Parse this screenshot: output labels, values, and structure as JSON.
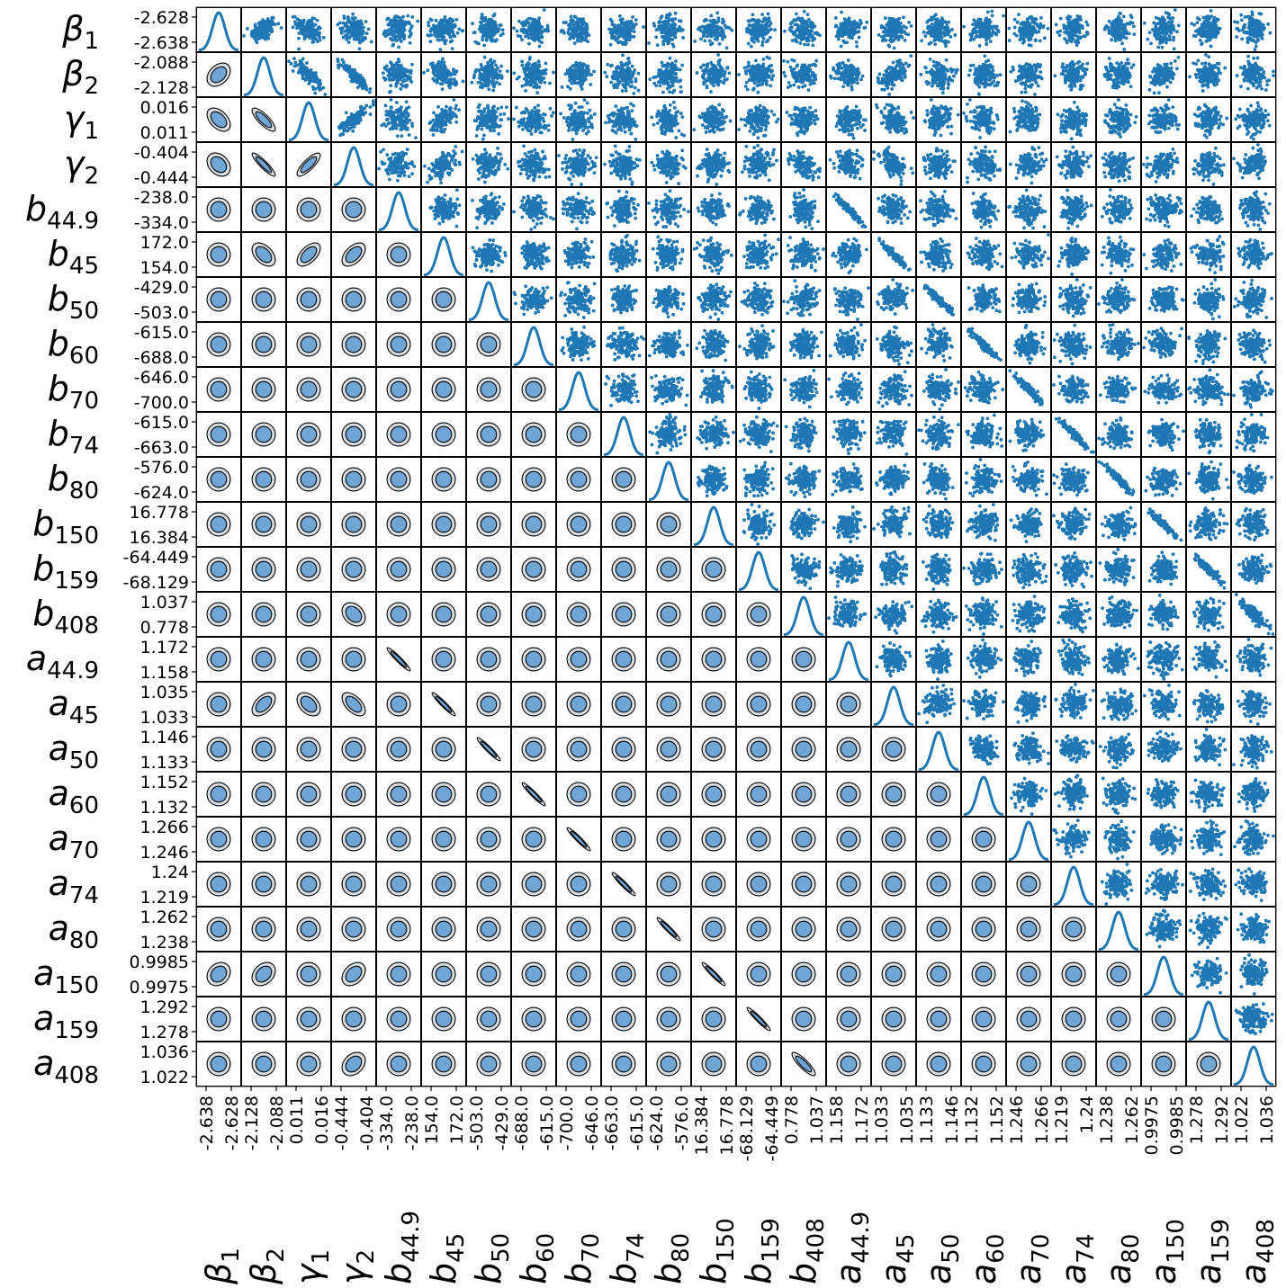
{
  "chart_data": {
    "type": "scatter",
    "layout": "corner-plot",
    "colors": {
      "marker": "#1f77b4",
      "contour_fill": "#6fa6d6",
      "contour_outer": "#d9dee3",
      "frame": "#000000"
    },
    "parameters": [
      {
        "symbol": "β",
        "sub": "1",
        "ticks": [
          "-2.638",
          "-2.628"
        ]
      },
      {
        "symbol": "β",
        "sub": "2",
        "ticks": [
          "-2.128",
          "-2.088"
        ]
      },
      {
        "symbol": "γ",
        "sub": "1",
        "ticks": [
          "0.011",
          "0.016"
        ]
      },
      {
        "symbol": "γ",
        "sub": "2",
        "ticks": [
          "-0.444",
          "-0.404"
        ]
      },
      {
        "symbol": "b",
        "sub": "44.9",
        "ticks": [
          "-334.0",
          "-238.0"
        ]
      },
      {
        "symbol": "b",
        "sub": "45",
        "ticks": [
          "154.0",
          "172.0"
        ]
      },
      {
        "symbol": "b",
        "sub": "50",
        "ticks": [
          "-503.0",
          "-429.0"
        ]
      },
      {
        "symbol": "b",
        "sub": "60",
        "ticks": [
          "-688.0",
          "-615.0"
        ]
      },
      {
        "symbol": "b",
        "sub": "70",
        "ticks": [
          "-700.0",
          "-646.0"
        ]
      },
      {
        "symbol": "b",
        "sub": "74",
        "ticks": [
          "-663.0",
          "-615.0"
        ]
      },
      {
        "symbol": "b",
        "sub": "80",
        "ticks": [
          "-624.0",
          "-576.0"
        ]
      },
      {
        "symbol": "b",
        "sub": "150",
        "ticks": [
          "16.384",
          "16.778"
        ]
      },
      {
        "symbol": "b",
        "sub": "159",
        "ticks": [
          "-68.129",
          "-64.449"
        ]
      },
      {
        "symbol": "b",
        "sub": "408",
        "ticks": [
          "0.778",
          "1.037"
        ]
      },
      {
        "symbol": "a",
        "sub": "44.9",
        "ticks": [
          "1.158",
          "1.172"
        ]
      },
      {
        "symbol": "a",
        "sub": "45",
        "ticks": [
          "1.033",
          "1.035"
        ]
      },
      {
        "symbol": "a",
        "sub": "50",
        "ticks": [
          "1.133",
          "1.146"
        ]
      },
      {
        "symbol": "a",
        "sub": "60",
        "ticks": [
          "1.132",
          "1.152"
        ]
      },
      {
        "symbol": "a",
        "sub": "70",
        "ticks": [
          "1.246",
          "1.266"
        ]
      },
      {
        "symbol": "a",
        "sub": "74",
        "ticks": [
          "1.219",
          "1.24"
        ]
      },
      {
        "symbol": "a",
        "sub": "80",
        "ticks": [
          "1.238",
          "1.262"
        ]
      },
      {
        "symbol": "a",
        "sub": "150",
        "ticks": [
          "0.9975",
          "0.9985"
        ]
      },
      {
        "symbol": "a",
        "sub": "159",
        "ticks": [
          "1.278",
          "1.292"
        ]
      },
      {
        "symbol": "a",
        "sub": "408",
        "ticks": [
          "1.022",
          "1.036"
        ]
      }
    ],
    "correlations": [
      {
        "pair": [
          0,
          1
        ],
        "r": 0.35
      },
      {
        "pair": [
          0,
          2
        ],
        "r": -0.45
      },
      {
        "pair": [
          0,
          3
        ],
        "r": -0.3
      },
      {
        "pair": [
          1,
          2
        ],
        "r": -0.8
      },
      {
        "pair": [
          1,
          3
        ],
        "r": -0.9
      },
      {
        "pair": [
          2,
          3
        ],
        "r": 0.8
      },
      {
        "pair": [
          1,
          5
        ],
        "r": -0.45
      },
      {
        "pair": [
          2,
          5
        ],
        "r": 0.55
      },
      {
        "pair": [
          3,
          5
        ],
        "r": 0.5
      },
      {
        "pair": [
          3,
          13
        ],
        "r": -0.3
      },
      {
        "pair": [
          3,
          21
        ],
        "r": 0.35
      },
      {
        "pair": [
          4,
          14
        ],
        "r": -0.95
      },
      {
        "pair": [
          5,
          15
        ],
        "r": -0.95
      },
      {
        "pair": [
          6,
          16
        ],
        "r": -0.95
      },
      {
        "pair": [
          7,
          17
        ],
        "r": -0.95
      },
      {
        "pair": [
          8,
          18
        ],
        "r": -0.95
      },
      {
        "pair": [
          9,
          19
        ],
        "r": -0.95
      },
      {
        "pair": [
          10,
          20
        ],
        "r": -0.95
      },
      {
        "pair": [
          11,
          21
        ],
        "r": -0.95
      },
      {
        "pair": [
          12,
          22
        ],
        "r": -0.95
      },
      {
        "pair": [
          13,
          23
        ],
        "r": -0.85
      },
      {
        "pair": [
          1,
          15
        ],
        "r": 0.5
      },
      {
        "pair": [
          2,
          15
        ],
        "r": -0.4
      },
      {
        "pair": [
          3,
          15
        ],
        "r": -0.55
      },
      {
        "pair": [
          1,
          21
        ],
        "r": 0.3
      },
      {
        "pair": [
          0,
          21
        ],
        "r": 0.2
      },
      {
        "pair": [
          3,
          23
        ],
        "r": 0.3
      }
    ]
  }
}
